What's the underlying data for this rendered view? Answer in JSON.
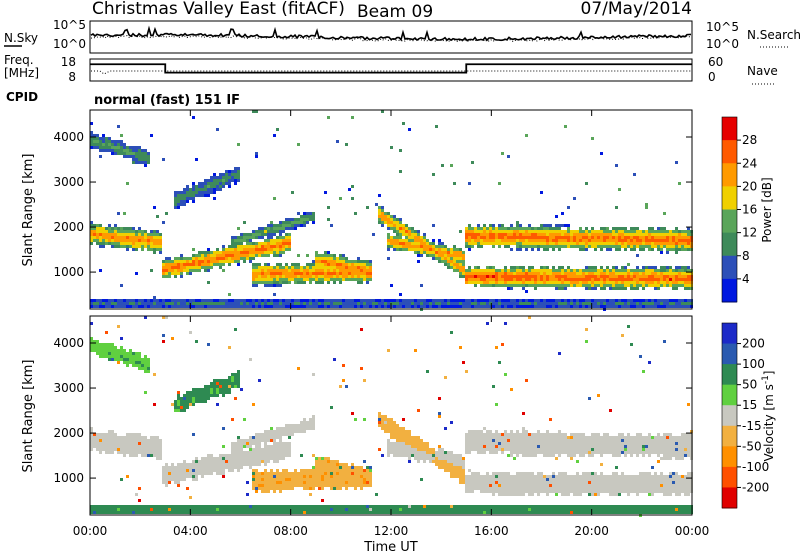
{
  "header": {
    "site": "Christmas Valley East (fitACF)",
    "beam": "Beam 09",
    "date": "07/May/2014"
  },
  "noise_panel": {
    "left_label": "N.Sky",
    "right_label": "N.Search",
    "left_ticks": [
      "10^5",
      "10^0"
    ],
    "right_ticks": [
      "10^5",
      "10^0"
    ]
  },
  "freq_panel": {
    "left_label_1": "Freq.",
    "left_label_2": "[MHz]",
    "right_label": "Nave",
    "left_ticks": [
      "18",
      "8"
    ],
    "right_ticks": [
      "60",
      "0"
    ],
    "freq_steps": [
      {
        "from_hour": 0,
        "to_hour": 3,
        "mhz": 15.6
      },
      {
        "from_hour": 3,
        "to_hour": 15,
        "mhz": 11.8
      },
      {
        "from_hour": 15,
        "to_hour": 24,
        "mhz": 15.6
      }
    ]
  },
  "cpid": {
    "label": "CPID",
    "text": "normal (fast) 151 IF"
  },
  "colors": {
    "power": [
      "#0018e0",
      "#2c4fb8",
      "#3e8a5a",
      "#5aa55a",
      "#f0d000",
      "#ff9a00",
      "#ff5a00",
      "#e60000"
    ],
    "velocity": [
      "#e00000",
      "#ff5000",
      "#ff9000",
      "#f2b040",
      "#c8c8c0",
      "#60d040",
      "#2e8a52",
      "#2a5ab0",
      "#1c2ac8"
    ]
  },
  "chart_data": [
    {
      "type": "heatmap",
      "panel": "power",
      "ylabel": "Slant Range [km]",
      "colorbar_label": "Power [dB]",
      "colorbar_ticks": [
        "28",
        "24",
        "20",
        "16",
        "12",
        "8",
        "4"
      ],
      "colorbar_range": [
        0,
        30
      ],
      "x_range_hours": [
        0,
        24
      ],
      "y_range_km": [
        180,
        4600
      ],
      "yticks": [
        "4000",
        "3000",
        "2000",
        "1000"
      ],
      "bands": [
        {
          "from": 0.0,
          "to": 2.9,
          "center_km": [
            1850,
            1650
          ],
          "width_km": 520,
          "peak_db": 24
        },
        {
          "from": 2.9,
          "to": 8.0,
          "center_km": [
            1050,
            1650
          ],
          "width_km": 480,
          "peak_db": 26
        },
        {
          "from": 5.6,
          "to": 9.0,
          "center_km": [
            1650,
            2250
          ],
          "width_km": 280,
          "peak_db": 14
        },
        {
          "from": 6.5,
          "to": 11.3,
          "center_km": [
            950,
            1000
          ],
          "width_km": 520,
          "peak_db": 25
        },
        {
          "from": 9.0,
          "to": 11.3,
          "center_km": [
            1250,
            1000
          ],
          "width_km": 500,
          "peak_db": 24
        },
        {
          "from": 11.5,
          "to": 14.9,
          "center_km": [
            2300,
            1050
          ],
          "width_km": 420,
          "peak_db": 23
        },
        {
          "from": 11.8,
          "to": 14.9,
          "center_km": [
            1700,
            1350
          ],
          "width_km": 380,
          "peak_db": 24
        },
        {
          "from": 15.0,
          "to": 24.0,
          "center_km": [
            1800,
            1700
          ],
          "width_km": 560,
          "peak_db": 26
        },
        {
          "from": 15.0,
          "to": 24.0,
          "center_km": [
            900,
            850
          ],
          "width_km": 520,
          "peak_db": 27
        },
        {
          "from": 0.0,
          "to": 2.4,
          "center_km": [
            3950,
            3500
          ],
          "width_km": 380,
          "peak_db": 12
        },
        {
          "from": 3.4,
          "to": 6.0,
          "center_km": [
            2600,
            3200
          ],
          "width_km": 420,
          "peak_db": 10
        },
        {
          "from": 0.0,
          "to": 24.0,
          "center_km": [
            300,
            300
          ],
          "width_km": 200,
          "peak_db": 8
        }
      ]
    },
    {
      "type": "heatmap",
      "panel": "velocity",
      "ylabel": "Slant Range [km]",
      "xlabel": "Time UT",
      "colorbar_label": "Velocity [m s^-1]",
      "colorbar_ticks": [
        "200",
        "100",
        "50",
        "15",
        "-15",
        "-50",
        "-100",
        "-200"
      ],
      "colorbar_range": [
        -250,
        250
      ],
      "x_range_hours": [
        0,
        24
      ],
      "y_range_km": [
        180,
        4600
      ],
      "yticks": [
        "4000",
        "3000",
        "2000",
        "1000"
      ],
      "xticks": [
        "00:00",
        "04:00",
        "08:00",
        "12:00",
        "16:00",
        "20:00",
        "00:00"
      ],
      "bands": [
        {
          "from": 0.0,
          "to": 2.9,
          "center_km": [
            1850,
            1650
          ],
          "width_km": 520,
          "vel": 0
        },
        {
          "from": 2.9,
          "to": 8.0,
          "center_km": [
            1050,
            1650
          ],
          "width_km": 480,
          "vel": 0
        },
        {
          "from": 5.6,
          "to": 9.0,
          "center_km": [
            1650,
            2250
          ],
          "width_km": 280,
          "vel": 0
        },
        {
          "from": 6.5,
          "to": 11.3,
          "center_km": [
            950,
            1000
          ],
          "width_km": 520,
          "vel": 40
        },
        {
          "from": 9.0,
          "to": 11.3,
          "center_km": [
            1250,
            1000
          ],
          "width_km": 500,
          "vel": 40
        },
        {
          "from": 11.5,
          "to": 14.9,
          "center_km": [
            2300,
            1050
          ],
          "width_km": 420,
          "vel": 30
        },
        {
          "from": 11.8,
          "to": 14.9,
          "center_km": [
            1700,
            1350
          ],
          "width_km": 380,
          "vel": 0
        },
        {
          "from": 15.0,
          "to": 24.0,
          "center_km": [
            1800,
            1700
          ],
          "width_km": 560,
          "vel": 0
        },
        {
          "from": 15.0,
          "to": 24.0,
          "center_km": [
            900,
            850
          ],
          "width_km": 520,
          "vel": 0
        },
        {
          "from": 0.0,
          "to": 2.4,
          "center_km": [
            3950,
            3500
          ],
          "width_km": 380,
          "vel": -40
        },
        {
          "from": 3.4,
          "to": 6.0,
          "center_km": [
            2600,
            3200
          ],
          "width_km": 420,
          "vel": -60
        },
        {
          "from": 0.0,
          "to": 24.0,
          "center_km": [
            300,
            300
          ],
          "width_km": 200,
          "vel": -70
        }
      ]
    }
  ]
}
